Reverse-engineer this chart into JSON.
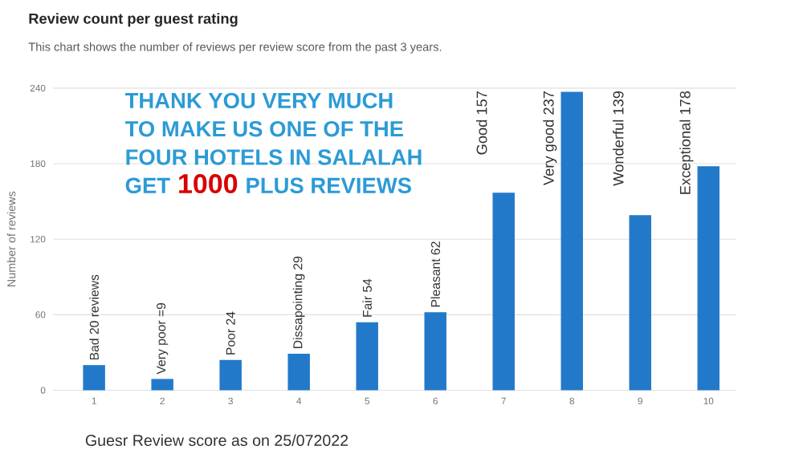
{
  "chart_data": {
    "type": "bar",
    "title": "Review count per guest rating",
    "subtitle": "This chart shows the number of reviews per review score from the past 3 years.",
    "ylabel": "Number of reviews",
    "categories": [
      "1",
      "2",
      "3",
      "4",
      "5",
      "6",
      "7",
      "8",
      "9",
      "10"
    ],
    "values": [
      20,
      9,
      24,
      29,
      54,
      62,
      157,
      237,
      139,
      178
    ],
    "value_labels": [
      "Bad 20 reviews",
      "Very poor =9",
      "Poor 24",
      "Dissapointing 29",
      "Fair 54",
      "Pleasant 62",
      "Good 157",
      "Very good 237",
      "Wonderful 139",
      "Exceptional 178"
    ],
    "color": "#2379c9",
    "ylim": [
      0,
      240
    ],
    "yticks": [
      0,
      60,
      120,
      180,
      240
    ],
    "grid": "y",
    "annotations": [
      "THANK YOU VERY MUCH",
      "TO MAKE US ONE OF THE",
      "FOUR HOTELS IN SALALAH",
      "GET",
      "1000",
      "PLUS REVIEWS",
      "Guesr Review score as on 25/072022"
    ]
  }
}
